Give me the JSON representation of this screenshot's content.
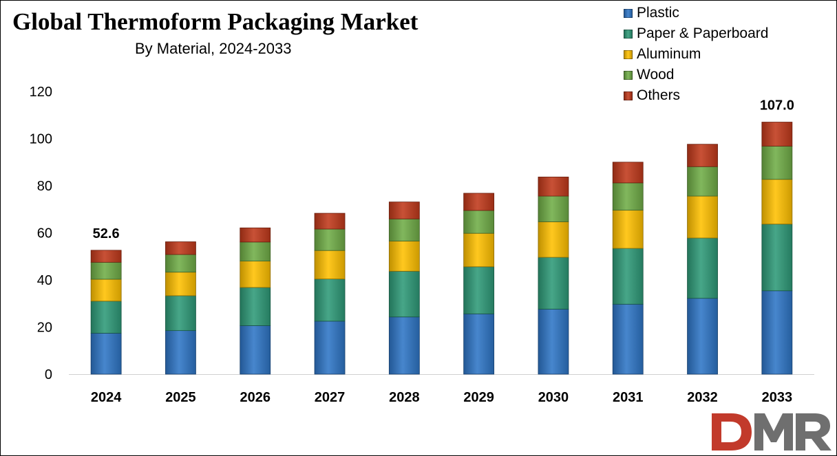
{
  "title": "Global Thermoform Packaging Market",
  "subtitle": "By Material, 2024-2033",
  "logo_text": "DMR",
  "chart_data": {
    "type": "bar",
    "stacked": true,
    "title": "Global Thermoform Packaging Market",
    "subtitle": "By Material, 2024-2033",
    "xlabel": "",
    "ylabel": "",
    "ylim": [
      0,
      120
    ],
    "yticks": [
      0,
      20,
      40,
      60,
      80,
      100,
      120
    ],
    "grid": false,
    "legend_position": "top-right",
    "categories": [
      "2024",
      "2025",
      "2026",
      "2027",
      "2028",
      "2029",
      "2030",
      "2031",
      "2032",
      "2033"
    ],
    "series": [
      {
        "name": "Plastic",
        "color": "#2e75c6",
        "values": [
          17.4,
          18.5,
          20.6,
          22.5,
          24.3,
          25.6,
          27.6,
          29.7,
          32.2,
          35.4
        ]
      },
      {
        "name": "Paper & Paperboard",
        "color": "#2e9a78",
        "values": [
          13.6,
          14.8,
          16.2,
          17.9,
          19.4,
          20.0,
          22.0,
          23.7,
          25.6,
          28.3
        ]
      },
      {
        "name": "Aluminum",
        "color": "#ffc000",
        "values": [
          9.3,
          10.0,
          11.2,
          12.1,
          12.8,
          14.2,
          15.1,
          16.2,
          17.8,
          19.0
        ]
      },
      {
        "name": "Wood",
        "color": "#70ad47",
        "values": [
          7.2,
          7.5,
          8.1,
          9.1,
          9.4,
          9.7,
          10.9,
          11.6,
          12.5,
          14.1
        ]
      },
      {
        "name": "Others",
        "color": "#c0391b",
        "values": [
          5.1,
          5.4,
          6.0,
          6.7,
          7.2,
          7.3,
          8.1,
          8.8,
          9.5,
          10.2
        ]
      }
    ],
    "data_labels": [
      {
        "category": "2024",
        "text": "52.6"
      },
      {
        "category": "2033",
        "text": "107.0"
      }
    ]
  }
}
